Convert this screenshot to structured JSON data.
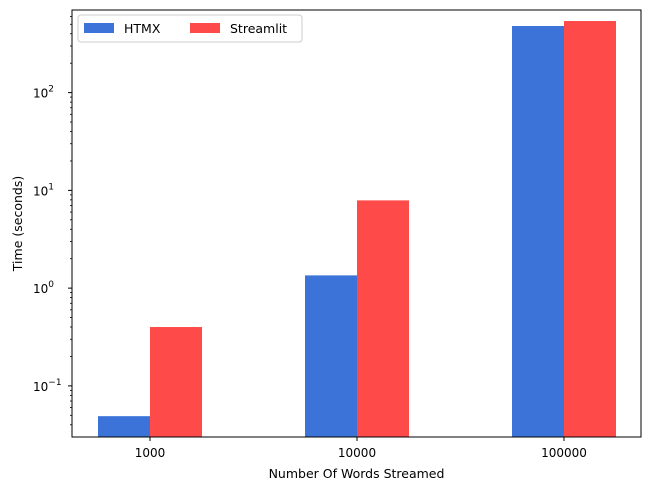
{
  "chart_data": {
    "type": "bar",
    "title": "",
    "xlabel": "Number Of Words Streamed",
    "ylabel": "Time (seconds)",
    "yscale": "log",
    "ylim": [
      0.03,
      700
    ],
    "categories": [
      "1000",
      "10000",
      "100000"
    ],
    "series": [
      {
        "name": "HTMX",
        "color": "#3b73d9",
        "values": [
          0.049,
          1.35,
          480
        ]
      },
      {
        "name": "Streamlit",
        "color": "#ff4a4a",
        "values": [
          0.4,
          7.9,
          540
        ]
      }
    ],
    "y_ticks": [
      {
        "value": 0.1,
        "base": "10",
        "exp": "−1"
      },
      {
        "value": 1,
        "base": "10",
        "exp": "0"
      },
      {
        "value": 10,
        "base": "10",
        "exp": "1"
      },
      {
        "value": 100,
        "base": "10",
        "exp": "2"
      }
    ],
    "legend": {
      "placement": "top-left",
      "columns": 2
    },
    "grid": false
  }
}
